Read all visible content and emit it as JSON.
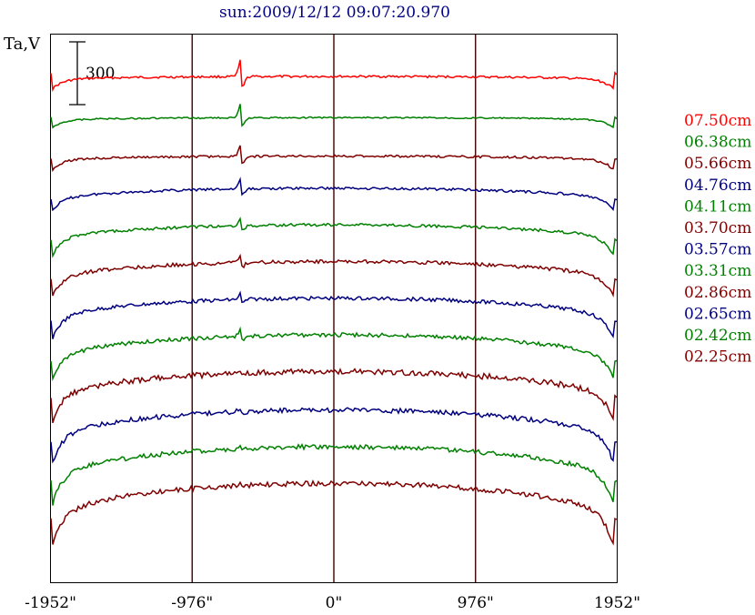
{
  "chart_data": {
    "type": "line",
    "title": "sun:2009/12/12 09:07:20.970",
    "ylabel": "Ta,V",
    "scale_bar": {
      "label": "300",
      "value": 300
    },
    "xlim": [
      -1952,
      1952
    ],
    "x_ticks": [
      {
        "value": -1952,
        "label": "-1952\""
      },
      {
        "value": -976,
        "label": "-976\""
      },
      {
        "value": 0,
        "label": "0\""
      },
      {
        "value": 976,
        "label": "976\""
      },
      {
        "value": 1952,
        "label": "1952\""
      }
    ],
    "vertical_lines": [
      -976,
      0,
      976
    ],
    "series": [
      {
        "name": "07.50cm",
        "color": "#ff0000",
        "profile": "cm750"
      },
      {
        "name": "06.38cm",
        "color": "#008000",
        "profile": "cm638"
      },
      {
        "name": "05.66cm",
        "color": "#800000",
        "profile": "cm566"
      },
      {
        "name": "04.76cm",
        "color": "#000080",
        "profile": "cm476"
      },
      {
        "name": "04.11cm",
        "color": "#008000",
        "profile": "cm411"
      },
      {
        "name": "03.70cm",
        "color": "#800000",
        "profile": "cm370"
      },
      {
        "name": "03.57cm",
        "color": "#000080",
        "profile": "cm357"
      },
      {
        "name": "03.31cm",
        "color": "#008000",
        "profile": "cm331"
      },
      {
        "name": "02.86cm",
        "color": "#800000",
        "profile": "cm286"
      },
      {
        "name": "02.65cm",
        "color": "#000080",
        "profile": "cm265"
      },
      {
        "name": "02.42cm",
        "color": "#008000",
        "profile": "cm242"
      },
      {
        "name": "02.25cm",
        "color": "#800000",
        "profile": "cm225"
      }
    ]
  },
  "legend": [
    {
      "label": "07.50cm",
      "color": "#ff0000"
    },
    {
      "label": "06.38cm",
      "color": "#008000"
    },
    {
      "label": "05.66cm",
      "color": "#800000"
    },
    {
      "label": "04.76cm",
      "color": "#000080"
    },
    {
      "label": "04.11cm",
      "color": "#008000"
    },
    {
      "label": "03.70cm",
      "color": "#800000"
    },
    {
      "label": "03.57cm",
      "color": "#000080"
    },
    {
      "label": "03.31cm",
      "color": "#008000"
    },
    {
      "label": "02.86cm",
      "color": "#800000"
    },
    {
      "label": "02.65cm",
      "color": "#000080"
    },
    {
      "label": "02.42cm",
      "color": "#008000"
    },
    {
      "label": "02.25cm",
      "color": "#800000"
    }
  ],
  "colors": {
    "title": "#000080",
    "axes": "#000000",
    "vline": "#400000"
  }
}
